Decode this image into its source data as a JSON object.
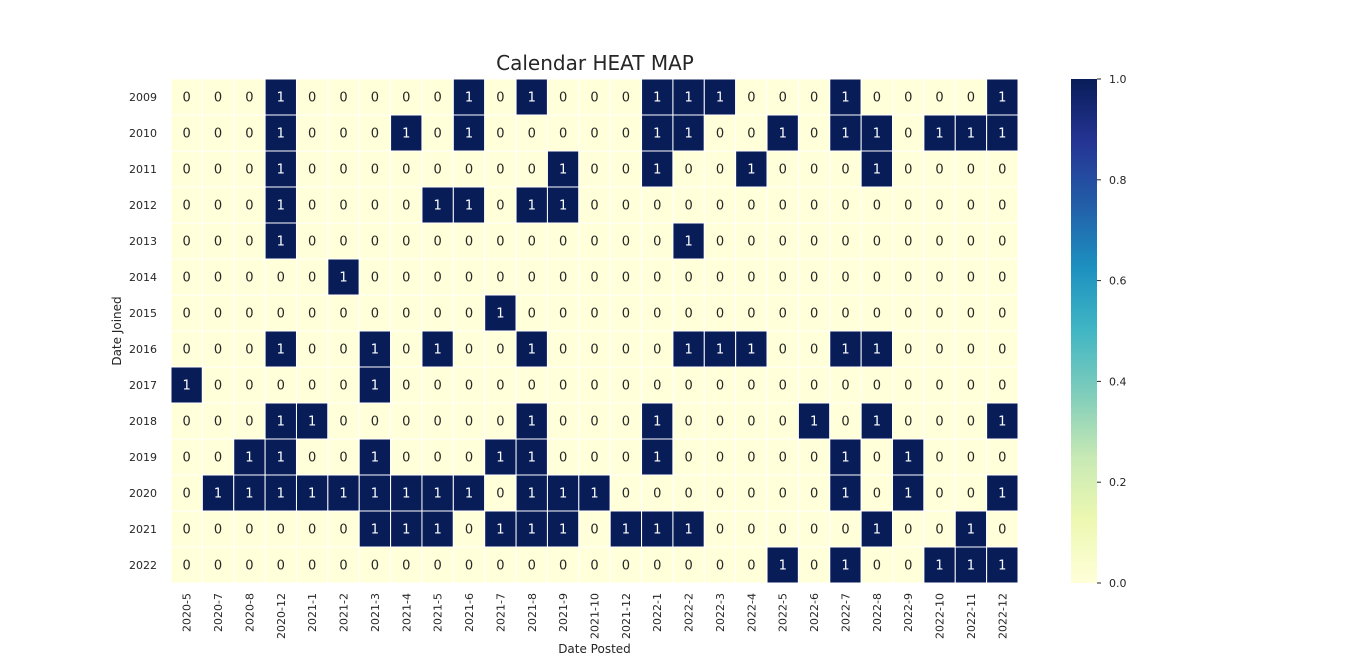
{
  "chart_data": {
    "type": "heatmap",
    "title": "Calendar HEAT MAP",
    "xlabel": "Date Posted",
    "ylabel": "Date Joined",
    "x": [
      "2020-5",
      "2020-7",
      "2020-8",
      "2020-12",
      "2021-1",
      "2021-2",
      "2021-3",
      "2021-4",
      "2021-5",
      "2021-6",
      "2021-7",
      "2021-8",
      "2021-9",
      "2021-10",
      "2021-12",
      "2022-1",
      "2022-2",
      "2022-3",
      "2022-4",
      "2022-5",
      "2022-6",
      "2022-7",
      "2022-8",
      "2022-9",
      "2022-10",
      "2022-11",
      "2022-12"
    ],
    "y": [
      "2009",
      "2010",
      "2011",
      "2012",
      "2013",
      "2014",
      "2015",
      "2016",
      "2017",
      "2018",
      "2019",
      "2020",
      "2021",
      "2022"
    ],
    "values": [
      [
        0,
        0,
        0,
        1,
        0,
        0,
        0,
        0,
        0,
        1,
        0,
        1,
        0,
        0,
        0,
        1,
        1,
        1,
        0,
        0,
        0,
        1,
        0,
        0,
        0,
        0,
        1
      ],
      [
        0,
        0,
        0,
        1,
        0,
        0,
        0,
        1,
        0,
        1,
        0,
        0,
        0,
        0,
        0,
        1,
        1,
        0,
        0,
        1,
        0,
        1,
        1,
        0,
        1,
        1,
        1
      ],
      [
        0,
        0,
        0,
        1,
        0,
        0,
        0,
        0,
        0,
        0,
        0,
        0,
        1,
        0,
        0,
        1,
        0,
        0,
        1,
        0,
        0,
        0,
        1,
        0,
        0,
        0,
        0
      ],
      [
        0,
        0,
        0,
        1,
        0,
        0,
        0,
        0,
        1,
        1,
        0,
        1,
        1,
        0,
        0,
        0,
        0,
        0,
        0,
        0,
        0,
        0,
        0,
        0,
        0,
        0,
        0
      ],
      [
        0,
        0,
        0,
        1,
        0,
        0,
        0,
        0,
        0,
        0,
        0,
        0,
        0,
        0,
        0,
        0,
        1,
        0,
        0,
        0,
        0,
        0,
        0,
        0,
        0,
        0,
        0
      ],
      [
        0,
        0,
        0,
        0,
        0,
        1,
        0,
        0,
        0,
        0,
        0,
        0,
        0,
        0,
        0,
        0,
        0,
        0,
        0,
        0,
        0,
        0,
        0,
        0,
        0,
        0,
        0
      ],
      [
        0,
        0,
        0,
        0,
        0,
        0,
        0,
        0,
        0,
        0,
        1,
        0,
        0,
        0,
        0,
        0,
        0,
        0,
        0,
        0,
        0,
        0,
        0,
        0,
        0,
        0,
        0
      ],
      [
        0,
        0,
        0,
        1,
        0,
        0,
        1,
        0,
        1,
        0,
        0,
        1,
        0,
        0,
        0,
        0,
        1,
        1,
        1,
        0,
        0,
        1,
        1,
        0,
        0,
        0,
        0
      ],
      [
        1,
        0,
        0,
        0,
        0,
        0,
        1,
        0,
        0,
        0,
        0,
        0,
        0,
        0,
        0,
        0,
        0,
        0,
        0,
        0,
        0,
        0,
        0,
        0,
        0,
        0,
        0
      ],
      [
        0,
        0,
        0,
        1,
        1,
        0,
        0,
        0,
        0,
        0,
        0,
        1,
        0,
        0,
        0,
        1,
        0,
        0,
        0,
        0,
        1,
        0,
        1,
        0,
        0,
        0,
        1
      ],
      [
        0,
        0,
        1,
        1,
        0,
        0,
        1,
        0,
        0,
        0,
        1,
        1,
        0,
        0,
        0,
        1,
        0,
        0,
        0,
        0,
        0,
        1,
        0,
        1,
        0,
        0,
        0
      ],
      [
        0,
        1,
        1,
        1,
        1,
        1,
        1,
        1,
        1,
        1,
        0,
        1,
        1,
        1,
        0,
        0,
        0,
        0,
        0,
        0,
        0,
        1,
        0,
        1,
        0,
        0,
        1
      ],
      [
        0,
        0,
        0,
        0,
        0,
        0,
        1,
        1,
        1,
        0,
        1,
        1,
        1,
        0,
        1,
        1,
        1,
        0,
        0,
        0,
        0,
        0,
        1,
        0,
        0,
        1,
        0
      ],
      [
        0,
        0,
        0,
        0,
        0,
        0,
        0,
        0,
        0,
        0,
        0,
        0,
        0,
        0,
        0,
        0,
        0,
        0,
        0,
        1,
        0,
        1,
        0,
        0,
        1,
        1,
        1
      ]
    ],
    "colormap": "YlGnBu",
    "vmin": 0,
    "vmax": 1,
    "annotated": true,
    "colorbar_ticks": [
      "0.0",
      "0.2",
      "0.4",
      "0.6",
      "0.8",
      "1.0"
    ],
    "colors": {
      "low": "#ffffd9",
      "high": "#081d58",
      "cell_border": "#ffffff",
      "text_dark": "#262626",
      "text_light": "#ffffff"
    }
  }
}
